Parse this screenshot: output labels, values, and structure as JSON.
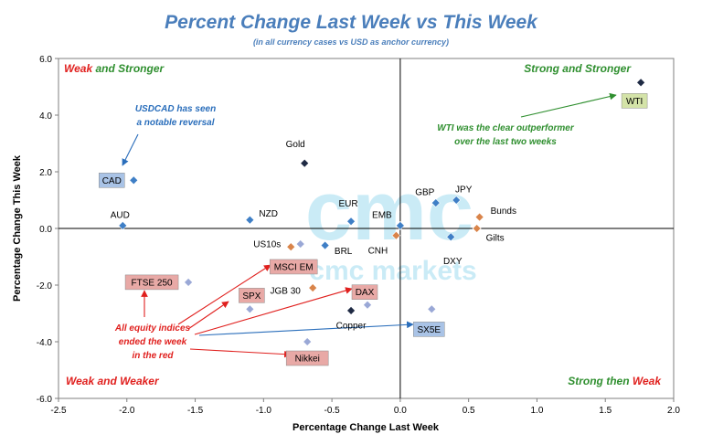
{
  "chart_data": {
    "type": "scatter",
    "title": "Percent Change Last Week vs This Week",
    "subtitle": "(in all  currency cases vs  USD as anchor currency)",
    "xlabel": "Percentage Change Last Week",
    "ylabel": "Percentage Change This Week",
    "xlim": [
      -2.5,
      2.0
    ],
    "ylim": [
      -6.0,
      6.0
    ],
    "xticks": [
      "-2.5",
      "-2.0",
      "-1.5",
      "-1.0",
      "-0.5",
      "0.0",
      "0.5",
      "1.0",
      "1.5",
      "2.0"
    ],
    "yticks": [
      "6.0",
      "4.0",
      "2.0",
      "0.0",
      "-2.0",
      "-4.0",
      "-6.0"
    ],
    "grid": false,
    "colors": {
      "fx": "#3f7fc6",
      "commodity": "#1f2a44",
      "bond": "#d9844a",
      "equity": "#9aa8d6",
      "box_blue": "#a9c3e6",
      "box_red": "#e8a9a6",
      "box_green": "#d4e3a8",
      "red_text": "#e0201e",
      "green_text": "#2f8f2f",
      "blue_text": "#2a6ebb"
    },
    "points": [
      {
        "label": "CAD",
        "x": -1.95,
        "y": 1.7,
        "group": "fx",
        "boxed": "blue"
      },
      {
        "label": "AUD",
        "x": -2.03,
        "y": 0.1,
        "group": "fx"
      },
      {
        "label": "NZD",
        "x": -1.1,
        "y": 0.3,
        "group": "fx"
      },
      {
        "label": "EUR",
        "x": -0.36,
        "y": 0.25,
        "group": "fx"
      },
      {
        "label": "EMB",
        "x": 0.0,
        "y": 0.1,
        "group": "fx"
      },
      {
        "label": "GBP",
        "x": 0.26,
        "y": 0.9,
        "group": "fx"
      },
      {
        "label": "JPY",
        "x": 0.41,
        "y": 1.0,
        "group": "fx"
      },
      {
        "label": "DXY",
        "x": 0.37,
        "y": -0.3,
        "group": "fx"
      },
      {
        "label": "BRL",
        "x": -0.55,
        "y": -0.6,
        "group": "fx"
      },
      {
        "label": "CNH",
        "x": -0.03,
        "y": -0.25,
        "group": "bond"
      },
      {
        "label": "US10s",
        "x": -0.8,
        "y": -0.65,
        "group": "bond"
      },
      {
        "label": "",
        "x": -0.73,
        "y": -0.55,
        "group": "equity"
      },
      {
        "label": "Bunds",
        "x": 0.58,
        "y": 0.4,
        "group": "bond"
      },
      {
        "label": "Gilts",
        "x": 0.56,
        "y": 0.0,
        "group": "bond"
      },
      {
        "label": "JGB 30",
        "x": -0.64,
        "y": -2.1,
        "group": "bond"
      },
      {
        "label": "Gold",
        "x": -0.7,
        "y": 2.3,
        "group": "commodity"
      },
      {
        "label": "WTI",
        "x": 1.76,
        "y": 5.15,
        "group": "commodity",
        "boxed": "green"
      },
      {
        "label": "Copper",
        "x": -0.36,
        "y": -2.9,
        "group": "commodity"
      },
      {
        "label": "FTSE 250",
        "x": -1.55,
        "y": -1.9,
        "group": "equity",
        "boxed": "red"
      },
      {
        "label": "MSCI EM",
        "x": -0.7,
        "y": -1.45,
        "group": "equity",
        "boxed": "red"
      },
      {
        "label": "SPX",
        "x": -1.1,
        "y": -2.85,
        "group": "equity",
        "boxed": "red"
      },
      {
        "label": "DAX",
        "x": -0.24,
        "y": -2.7,
        "group": "equity",
        "boxed": "red"
      },
      {
        "label": "SX5E",
        "x": 0.23,
        "y": -2.85,
        "group": "equity",
        "boxed": "blue"
      },
      {
        "label": "Nikkei",
        "x": -0.68,
        "y": -4.0,
        "group": "equity",
        "boxed": "red"
      }
    ],
    "quadrants": {
      "top_left": [
        "Weak",
        " and ",
        "Stronger"
      ],
      "top_right": [
        "Strong",
        " and ",
        "Stronger"
      ],
      "bottom_left": [
        "Weak",
        " and ",
        "Weaker"
      ],
      "bottom_right": [
        "Strong",
        " then ",
        "Weak"
      ]
    },
    "annotations": {
      "usdcad": [
        "USDCAD has seen",
        "a notable reversal"
      ],
      "wti": [
        "WTI was the clear outperformer",
        "over the last two weeks"
      ],
      "equity": [
        "All equity indices",
        "ended the week",
        "in the red"
      ]
    },
    "watermark": {
      "logo": "cmc",
      "text": "cmc markets"
    }
  }
}
